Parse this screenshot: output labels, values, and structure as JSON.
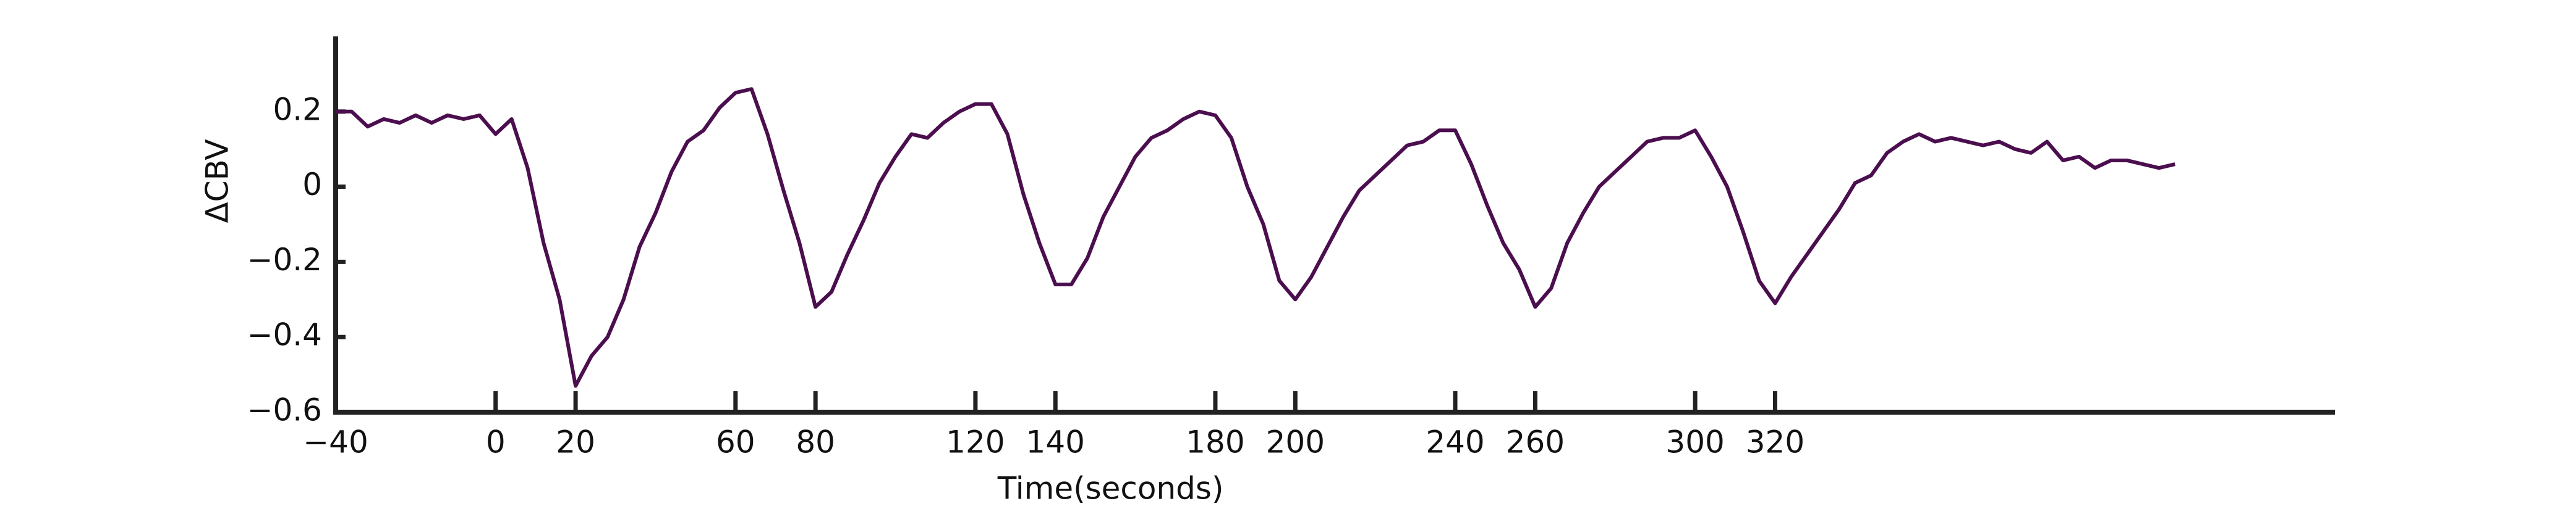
{
  "chart_data": {
    "type": "line",
    "xlabel": "Time(seconds)",
    "ylabel": "ΔCBV",
    "xlim": [
      -40,
      460
    ],
    "ylim": [
      -0.6,
      0.4
    ],
    "xticks": [
      {
        "value": -40,
        "label": "−40"
      },
      0,
      20,
      60,
      80,
      120,
      140,
      180,
      200,
      240,
      260,
      300,
      320
    ],
    "yticks": [
      0.2,
      0,
      {
        "value": -0.2,
        "label": "−0.2"
      },
      {
        "value": -0.4,
        "label": "−0.4"
      },
      {
        "value": -0.6,
        "label": "−0.6"
      }
    ],
    "color": "#4b0e4e",
    "x": [
      -40,
      -36,
      -32,
      -28,
      -24,
      -20,
      -16,
      -12,
      -8,
      -4,
      0,
      4,
      8,
      12,
      16,
      20,
      24,
      28,
      32,
      36,
      40,
      44,
      48,
      52,
      56,
      60,
      64,
      68,
      72,
      76,
      80,
      84,
      88,
      92,
      96,
      100,
      104,
      108,
      112,
      116,
      120,
      124,
      128,
      132,
      136,
      140,
      144,
      148,
      152,
      156,
      160,
      164,
      168,
      172,
      176,
      180,
      184,
      188,
      192,
      196,
      200,
      204,
      208,
      212,
      216,
      220,
      224,
      228,
      232,
      236,
      240,
      244,
      248,
      252,
      256,
      260,
      264,
      268,
      272,
      276,
      280,
      284,
      288,
      292,
      296,
      300,
      304,
      308,
      312,
      316,
      320,
      324,
      328,
      332,
      336,
      340,
      344,
      348,
      352,
      356,
      360,
      364,
      368,
      372,
      376,
      380,
      384,
      388,
      392,
      396,
      400,
      404,
      408,
      412,
      416,
      420
    ],
    "values": [
      0.2,
      0.2,
      0.16,
      0.18,
      0.17,
      0.19,
      0.17,
      0.19,
      0.18,
      0.19,
      0.14,
      0.18,
      0.05,
      -0.15,
      -0.3,
      -0.53,
      -0.45,
      -0.4,
      -0.3,
      -0.16,
      -0.07,
      0.04,
      0.12,
      0.15,
      0.21,
      0.25,
      0.26,
      0.14,
      -0.01,
      -0.15,
      -0.32,
      -0.28,
      -0.18,
      -0.09,
      0.01,
      0.08,
      0.14,
      0.13,
      0.17,
      0.2,
      0.22,
      0.22,
      0.14,
      -0.02,
      -0.15,
      -0.26,
      -0.26,
      -0.19,
      -0.08,
      0.0,
      0.08,
      0.13,
      0.15,
      0.18,
      0.2,
      0.19,
      0.13,
      0.0,
      -0.1,
      -0.25,
      -0.3,
      -0.24,
      -0.16,
      -0.08,
      -0.01,
      0.03,
      0.07,
      0.11,
      0.12,
      0.15,
      0.15,
      0.06,
      -0.05,
      -0.15,
      -0.22,
      -0.32,
      -0.27,
      -0.15,
      -0.07,
      0.0,
      0.04,
      0.08,
      0.12,
      0.13,
      0.13,
      0.15,
      0.08,
      0.0,
      -0.12,
      -0.25,
      -0.31,
      -0.24,
      -0.18,
      -0.12,
      -0.06,
      0.01,
      0.03,
      0.09,
      0.12,
      0.14,
      0.12,
      0.13,
      0.12,
      0.11,
      0.12,
      0.1,
      0.09,
      0.12,
      0.07,
      0.08,
      0.05,
      0.07,
      0.07,
      0.06,
      0.05,
      0.06
    ]
  }
}
